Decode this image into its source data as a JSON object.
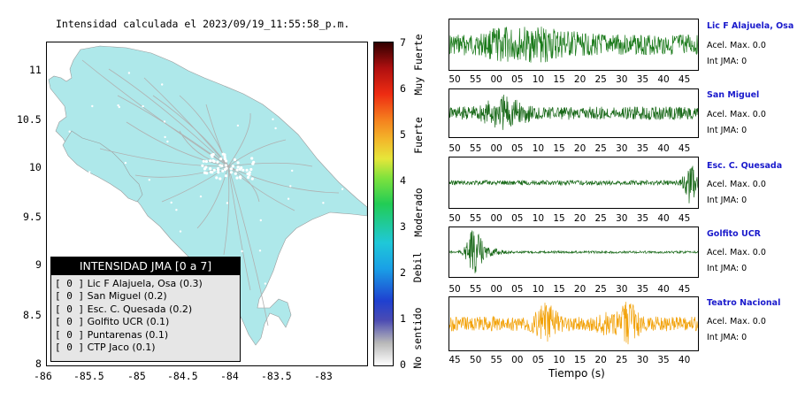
{
  "map": {
    "title": "Intensidad calculada el 2023/09/19_11:55:58_p.m.",
    "x_ticks": [
      "-86",
      "-85.5",
      "-85",
      "-84.5",
      "-84",
      "-83.5",
      "-83"
    ],
    "y_ticks": [
      "11",
      "10.5",
      "10",
      "9.5",
      "9",
      "8.5",
      "8"
    ],
    "land_color": "#aee8ea",
    "road_color": "#b0b0b0"
  },
  "legend": {
    "title": "INTENSIDAD JMA [0 a 7]",
    "items": [
      {
        "level": "[ 0 ]",
        "station": "Lic F Alajuela, Osa (0.3)"
      },
      {
        "level": "[ 0 ]",
        "station": "San Miguel (0.2)"
      },
      {
        "level": "[ 0 ]",
        "station": "Esc. C. Quesada (0.2)"
      },
      {
        "level": "[ 0 ]",
        "station": "Golfito UCR (0.1)"
      },
      {
        "level": "[ 0 ]",
        "station": "Puntarenas (0.1)"
      },
      {
        "level": "[ 0 ]",
        "station": "CTP Jaco (0.1)"
      }
    ]
  },
  "colorbar": {
    "ticks": [
      "0",
      "1",
      "2",
      "3",
      "4",
      "5",
      "6",
      "7"
    ],
    "categories": [
      "No sentido",
      "Debil",
      "Moderado",
      "Fuerte",
      "Muy Fuerte"
    ]
  },
  "stations": [
    {
      "name": "Lic F Alajuela, Osa",
      "acel": "Acel. Max. 0.0",
      "int": "Int JMA: 0",
      "color": "#1a7a1a",
      "ticks": [
        "50",
        "55",
        "00",
        "05",
        "10",
        "15",
        "20",
        "25",
        "30",
        "35",
        "40",
        "45"
      ]
    },
    {
      "name": "San Miguel",
      "acel": "Acel. Max. 0.0",
      "int": "Int JMA: 0",
      "color": "#1a6a1a",
      "ticks": [
        "50",
        "55",
        "00",
        "05",
        "10",
        "15",
        "20",
        "25",
        "30",
        "35",
        "40",
        "45"
      ]
    },
    {
      "name": "Esc. C. Quesada",
      "acel": "Acel. Max. 0.0",
      "int": "Int JMA: 0",
      "color": "#1a6a1a",
      "ticks": [
        "50",
        "55",
        "00",
        "05",
        "10",
        "15",
        "20",
        "25",
        "30",
        "35",
        "40",
        "45"
      ]
    },
    {
      "name": "Golfito UCR",
      "acel": "Acel. Max. 0.0",
      "int": "Int JMA: 0",
      "color": "#1a6a1a",
      "ticks": [
        "50",
        "55",
        "00",
        "05",
        "10",
        "15",
        "20",
        "25",
        "30",
        "35",
        "40",
        "45"
      ]
    },
    {
      "name": "Teatro Nacional",
      "acel": "Acel. Max. 0.0",
      "int": "Int JMA: 0",
      "color": "#f2a20a",
      "ticks": [
        "45",
        "50",
        "55",
        "00",
        "05",
        "10",
        "15",
        "20",
        "25",
        "30",
        "35",
        "40"
      ]
    }
  ],
  "x_axis_label": "Tiempo (s)"
}
